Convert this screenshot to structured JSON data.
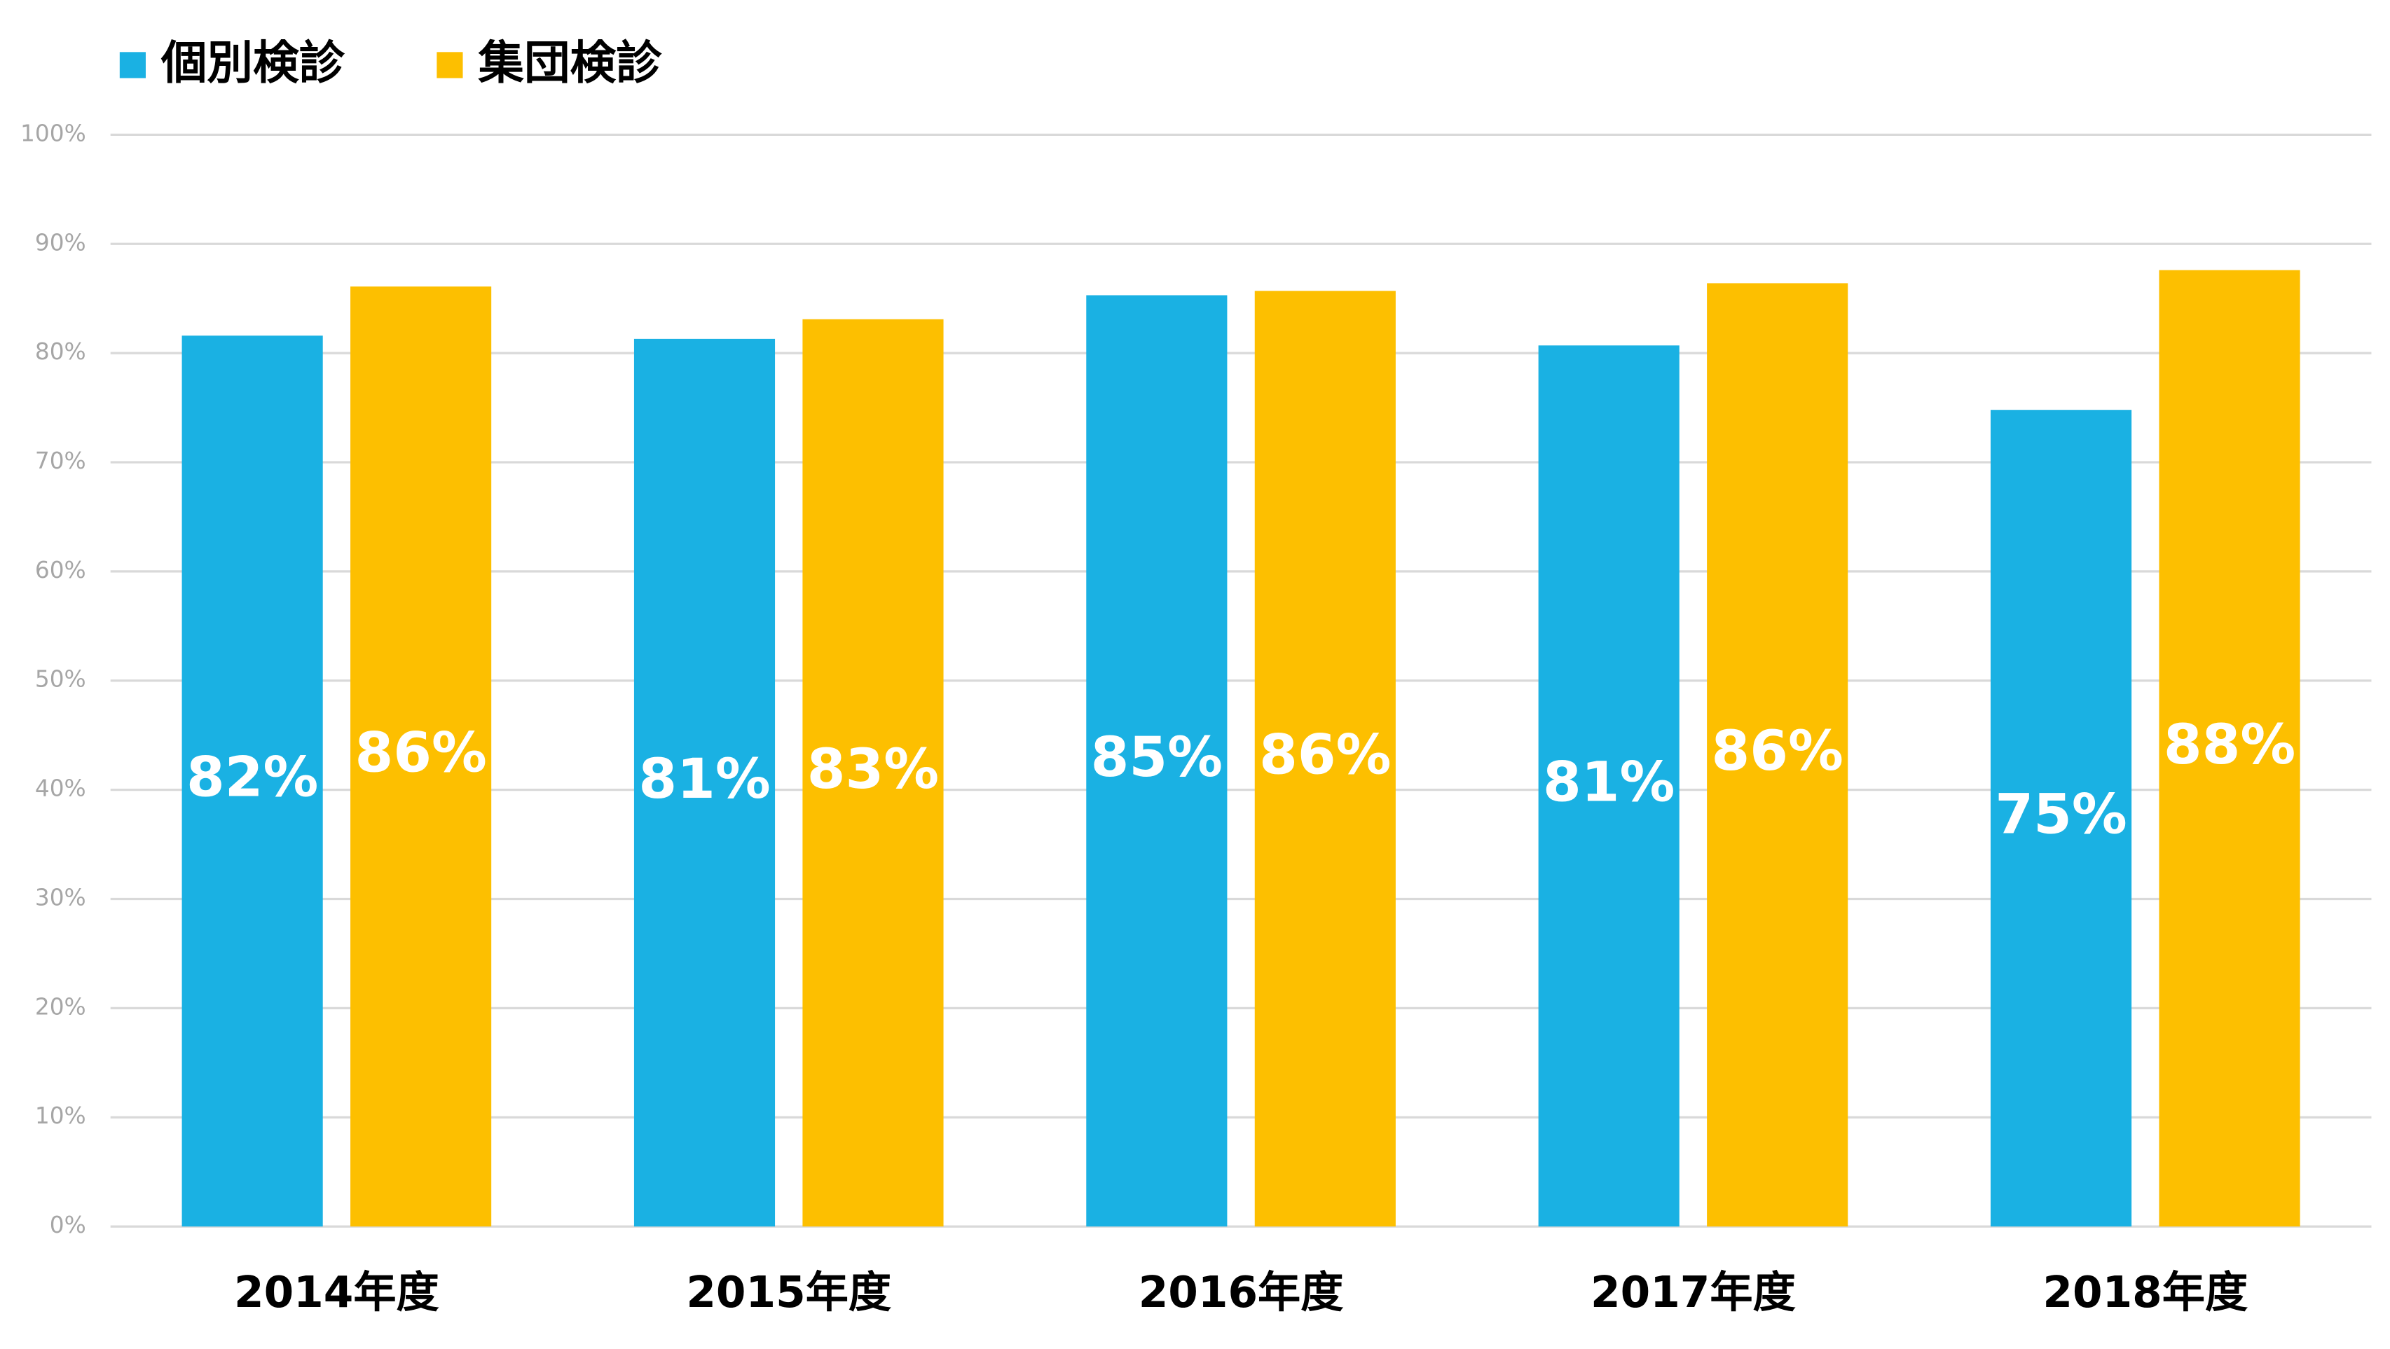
{
  "chart_data": {
    "type": "bar",
    "categories": [
      "2014年度",
      "2015年度",
      "2016年度",
      "2017年度",
      "2018年度"
    ],
    "series": [
      {
        "name": "個別検診",
        "color": "#1ab1e3",
        "values": [
          81.6,
          81.3,
          85.3,
          80.7,
          74.8
        ],
        "value_labels": [
          "82%",
          "81%",
          "85%",
          "81%",
          "75%"
        ]
      },
      {
        "name": "集団検診",
        "color": "#fdbf00",
        "values": [
          86.1,
          83.1,
          85.7,
          86.4,
          87.6
        ],
        "value_labels": [
          "86%",
          "83%",
          "86%",
          "86%",
          "88%"
        ]
      }
    ],
    "ylim": [
      0,
      100
    ],
    "yticks": [
      {
        "value": 0,
        "label": "0%"
      },
      {
        "value": 10,
        "label": "10%"
      },
      {
        "value": 20,
        "label": "20%"
      },
      {
        "value": 30,
        "label": "30%"
      },
      {
        "value": 40,
        "label": "40%"
      },
      {
        "value": 50,
        "label": "50%"
      },
      {
        "value": 60,
        "label": "60%"
      },
      {
        "value": 70,
        "label": "70%"
      },
      {
        "value": 80,
        "label": "80%"
      },
      {
        "value": 90,
        "label": "90%"
      },
      {
        "value": 100,
        "label": "100%"
      }
    ],
    "grid": true,
    "legend": "top-left"
  }
}
